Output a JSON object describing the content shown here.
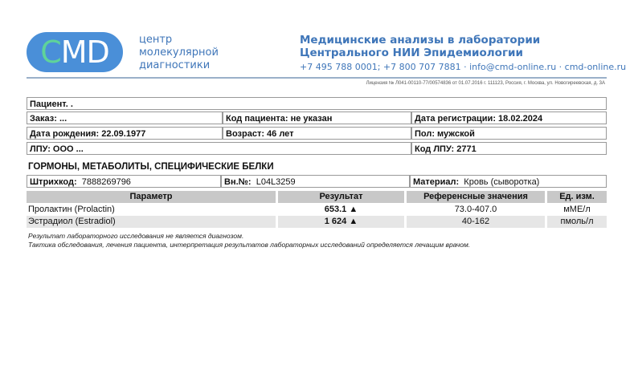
{
  "header": {
    "logo_c": "C",
    "logo_md": "MD",
    "org_lines": [
      "центр",
      "молекулярной",
      "диагностики"
    ],
    "lab_lines": [
      "Медицинские анализы в лаборатории",
      "Центрального НИИ Эпидемиологии"
    ],
    "contacts": "+7 495 788 0001; +7 800 707 7881 · info@cmd-online.ru · cmd-online.ru",
    "license": "Лицензия № Л041-00110-77/00574836 от 01.07.2016 г. 111123, Россия, г. Москва, ул. Новогиреевская, д. 3А"
  },
  "patient": {
    "name": "Пациент. .",
    "order": "Заказ: ...",
    "patient_code": "Код пациента: не указан",
    "reg_date": "Дата регистрации: 18.02.2024",
    "birth": "Дата рождения: 22.09.1977",
    "age": "Возраст: 46 лет",
    "sex": "Пол: мужской",
    "lpu": "ЛПУ: ООО ...",
    "lpu_code": "Код ЛПУ: 2771"
  },
  "section": {
    "title": "ГОРМОНЫ, МЕТАБОЛИТЫ, СПЕЦИФИЧЕСКИЕ БЕЛКИ",
    "barcode_label": "Штрихкод:",
    "barcode": "7888269796",
    "int_label": "Вн.№:",
    "int_no": "L04L3259",
    "material_label": "Материал:",
    "material": "Кровь (сыворотка)"
  },
  "table": {
    "headers": [
      "Параметр",
      "Результат",
      "Референсные значения",
      "Ед. изм."
    ],
    "rows": [
      {
        "param": "Пролактин (Prolactin)",
        "result": "653.1 ▲",
        "ref": "73.0-407.0",
        "unit": "мМЕ/л"
      },
      {
        "param": "Эстрадиол (Estradiol)",
        "result": "1 624 ▲",
        "ref": "40-162",
        "unit": "пмоль/л"
      }
    ]
  },
  "notes": [
    "Результат лабораторного исследования не является диагнозом.",
    "Тактика обследования, лечения пациента, интерпретация результатов лабораторных исследований определяется лечащим врачом."
  ],
  "colors": {
    "brand": "#3f76b9",
    "logo_bg": "#4a8fd8",
    "logo_c": "#5fd39a",
    "header_bg": "#c8c8c8"
  }
}
